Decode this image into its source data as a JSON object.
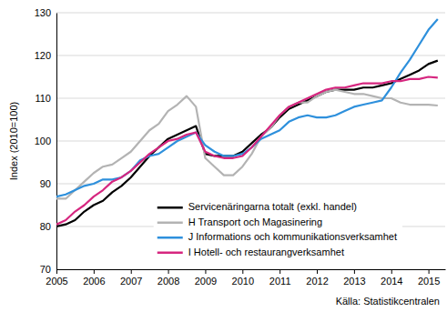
{
  "chart_data": {
    "type": "line",
    "y_label": "Index (2010=100)",
    "annotations": [
      "Källa: Statistikcentralen"
    ],
    "x": [
      2005,
      2005.25,
      2005.5,
      2005.75,
      2006,
      2006.25,
      2006.5,
      2006.75,
      2007,
      2007.25,
      2007.5,
      2007.75,
      2008,
      2008.25,
      2008.5,
      2008.75,
      2009,
      2009.25,
      2009.5,
      2009.75,
      2010,
      2010.25,
      2010.5,
      2010.75,
      2011,
      2011.25,
      2011.5,
      2011.75,
      2012,
      2012.25,
      2012.5,
      2012.75,
      2013,
      2013.25,
      2013.5,
      2013.75,
      2014,
      2014.25,
      2014.5,
      2014.75,
      2015,
      2015.25
    ],
    "xlim": [
      2005,
      2015.45
    ],
    "xticks": [
      2005,
      2006,
      2007,
      2008,
      2009,
      2010,
      2011,
      2012,
      2013,
      2014,
      2015
    ],
    "ylim": [
      70,
      130
    ],
    "yticks": [
      70,
      80,
      90,
      100,
      110,
      120,
      130
    ],
    "grid": true,
    "legend": "bottom",
    "series": [
      {
        "name": "Servicenäringarna totalt  (exkl. handel)",
        "color": "#000000",
        "values": [
          80,
          80.5,
          81.5,
          83.5,
          85,
          86,
          88,
          89.5,
          91.5,
          94,
          96.5,
          98.5,
          100.5,
          101.5,
          102.5,
          103.5,
          97,
          96.5,
          96.5,
          96.5,
          97.5,
          99.5,
          101.5,
          103,
          105.5,
          107.5,
          108.5,
          109.5,
          110.5,
          111.5,
          112,
          112,
          112,
          112.5,
          112.5,
          113,
          113.5,
          114.5,
          115.5,
          116.5,
          118,
          118.8
        ]
      },
      {
        "name": "H Transport och Magasinering",
        "color": "#b3b3b3",
        "values": [
          86.5,
          86.5,
          88.5,
          90.5,
          92.5,
          94,
          94.5,
          96,
          97.5,
          100,
          102.5,
          104,
          107,
          108.5,
          110.5,
          108,
          96,
          94,
          92,
          92,
          94,
          97,
          101,
          103,
          106,
          108,
          109,
          109,
          110.5,
          111.5,
          112,
          111.5,
          111,
          111,
          110.5,
          110,
          110,
          109,
          108.5,
          108.5,
          108.5,
          108.3
        ]
      },
      {
        "name": "J Informations och kommunikationsverksamhet",
        "color": "#2e90dc",
        "values": [
          87,
          87.5,
          88.5,
          89.5,
          90,
          91,
          91,
          91.5,
          93,
          95.5,
          96.5,
          97,
          98.5,
          100,
          101,
          102,
          99,
          97.5,
          96.5,
          96.5,
          97,
          98.5,
          100.5,
          101.5,
          102.5,
          104.5,
          105.5,
          106,
          105.5,
          105.5,
          106,
          107,
          108,
          108.5,
          109,
          109.5,
          112.5,
          116,
          119,
          122.5,
          126,
          128.5
        ]
      },
      {
        "name": "I Hotell- och restaurangverksamhet",
        "color": "#d6267f",
        "values": [
          80.5,
          81.5,
          83.5,
          85,
          87,
          88.5,
          90.5,
          91.5,
          93,
          95,
          97,
          98.5,
          100,
          100.5,
          101.5,
          102,
          97.5,
          96.5,
          96,
          96,
          96.5,
          98.5,
          101,
          103.5,
          106,
          108,
          109,
          110,
          111,
          112,
          112.5,
          112.5,
          113,
          113.5,
          113.5,
          113.5,
          114,
          114,
          114.5,
          114.5,
          115,
          114.8
        ]
      }
    ]
  }
}
